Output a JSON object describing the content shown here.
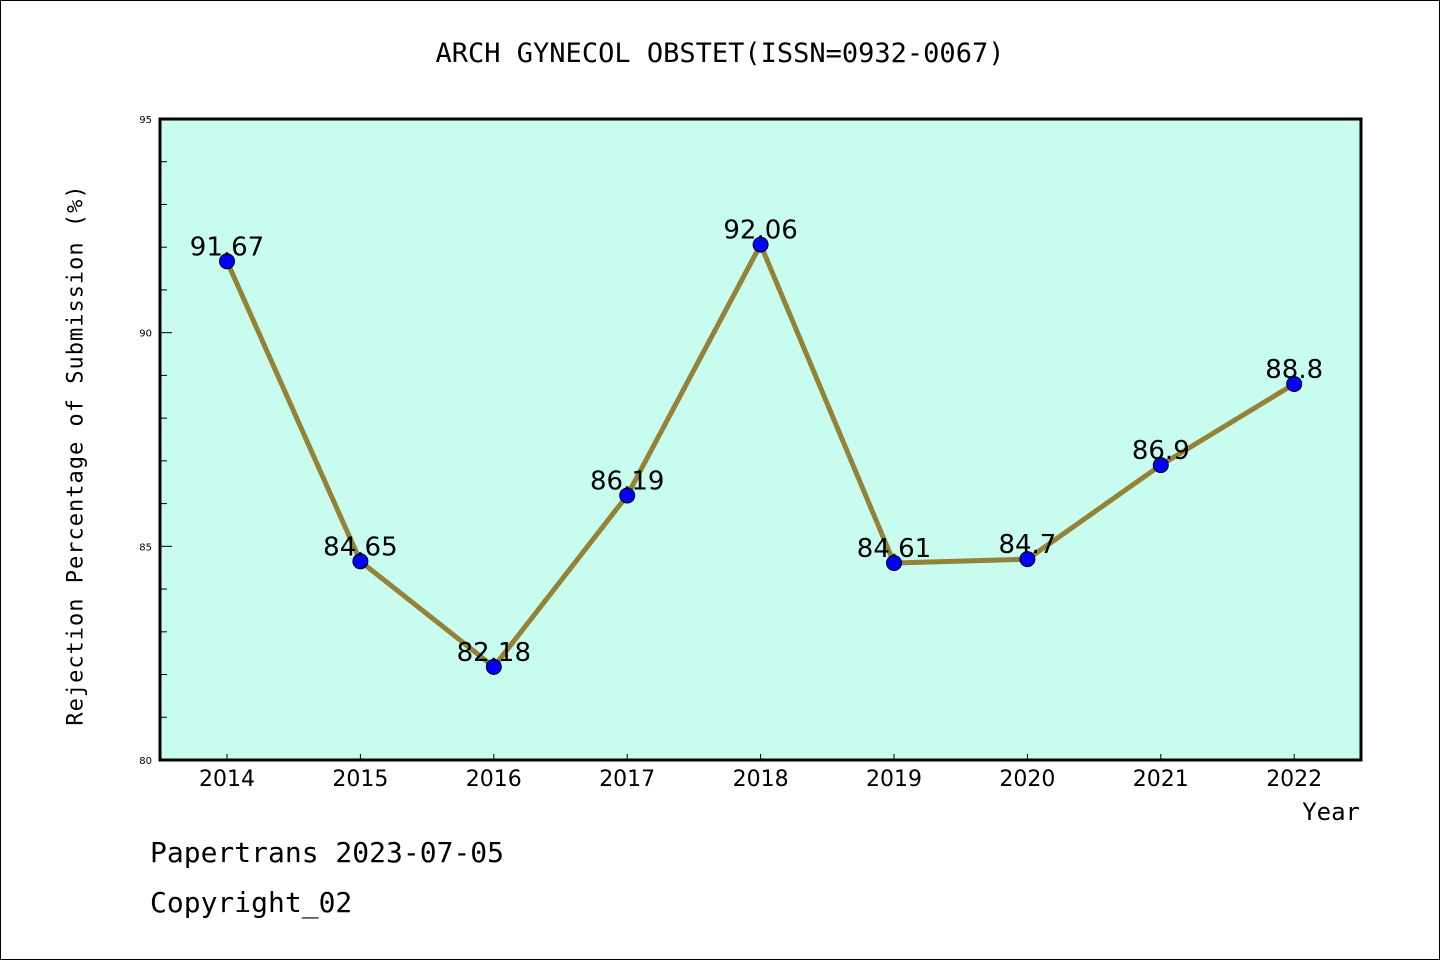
{
  "chart_data": {
    "type": "line",
    "title": "ARCH GYNECOL OBSTET(ISSN=0932-0067)",
    "xlabel": "Year",
    "ylabel": "Rejection Percentage of Submission (%)",
    "categories": [
      "2014",
      "2015",
      "2016",
      "2017",
      "2018",
      "2019",
      "2020",
      "2021",
      "2022"
    ],
    "series": [
      {
        "name": "Rejection Percentage",
        "values": [
          91.67,
          84.65,
          82.18,
          86.19,
          92.06,
          84.61,
          84.7,
          86.9,
          88.8
        ]
      }
    ],
    "data_labels": [
      "91.67",
      "84.65",
      "82.18",
      "86.19",
      "92.06",
      "84.61",
      "84.7",
      "86.9",
      "88.8"
    ],
    "ylim": [
      80,
      95
    ],
    "yticks": [
      "80",
      "85",
      "90",
      "95"
    ],
    "grid": false,
    "colors": {
      "background": "#C8FCEF",
      "line": "#948236",
      "marker": "#0000FF"
    }
  },
  "footer": {
    "line1": "Papertrans 2023-07-05",
    "line2": "Copyright_02"
  }
}
